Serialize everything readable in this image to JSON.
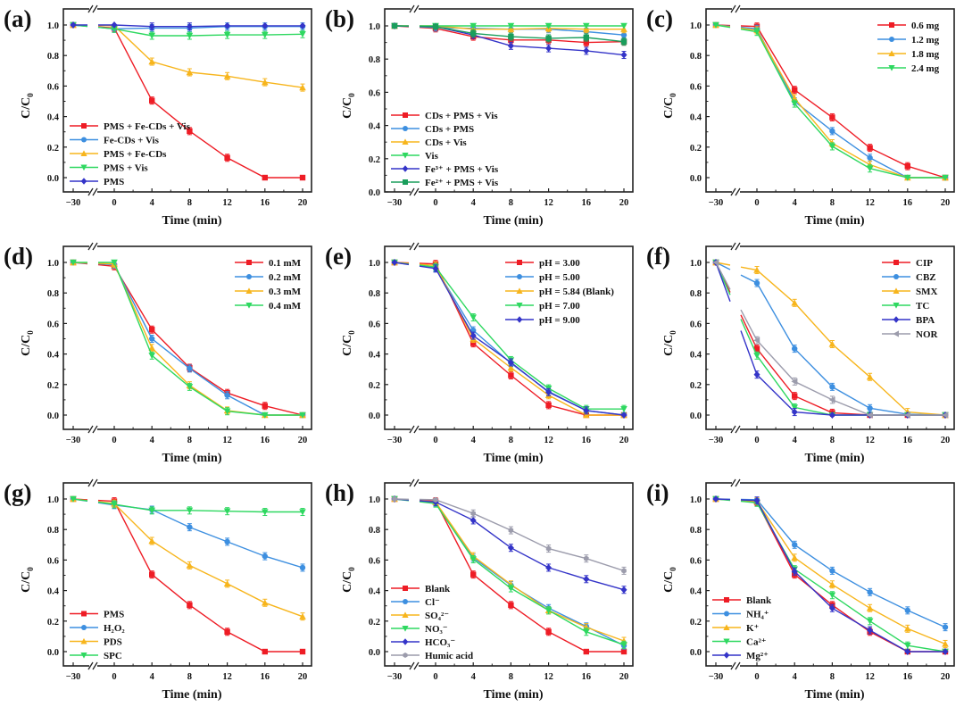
{
  "chart_data": [
    {
      "panel": "(a)",
      "type": "line",
      "title": "",
      "xlabel": "Time (min)",
      "ylabel": "C/C0",
      "x": [
        -30,
        0,
        4,
        8,
        12,
        16,
        20
      ],
      "xticks": [
        "−30",
        "0",
        "4",
        "8",
        "12",
        "16",
        "20"
      ],
      "ylim": [
        -0.1,
        1.1
      ],
      "yticks": [
        "0.0",
        "0.2",
        "0.4",
        "0.6",
        "0.8",
        "1.0"
      ],
      "legend": "bottom-left",
      "series": [
        {
          "name": "PMS + Fe-CDs + Vis",
          "color": "#ee1c25",
          "marker": "square",
          "values": [
            1.0,
            0.98,
            0.505,
            0.305,
            0.13,
            0.0,
            0.0
          ]
        },
        {
          "name": "Fe-CDs + Vis",
          "color": "#3d8fe0",
          "marker": "circle",
          "values": [
            1.0,
            0.975,
            0.98,
            0.98,
            0.99,
            0.99,
            0.99
          ]
        },
        {
          "name": "PMS + Fe-CDs",
          "color": "#f7b51c",
          "marker": "triangle",
          "values": [
            1.0,
            0.995,
            0.76,
            0.69,
            0.665,
            0.625,
            0.59
          ]
        },
        {
          "name": "PMS + Vis",
          "color": "#2ed860",
          "marker": "triangle-down",
          "values": [
            1.0,
            0.975,
            0.93,
            0.93,
            0.935,
            0.935,
            0.94
          ]
        },
        {
          "name": "PMS",
          "color": "#3434c8",
          "marker": "diamond",
          "values": [
            1.0,
            1.0,
            0.99,
            0.99,
            0.995,
            0.995,
            0.995
          ]
        }
      ]
    },
    {
      "panel": "(b)",
      "type": "line",
      "xlabel": "Time (min)",
      "ylabel": "C/C0",
      "x": [
        -30,
        0,
        4,
        8,
        12,
        16,
        20
      ],
      "xticks": [
        "−30",
        "0",
        "4",
        "8",
        "12",
        "16",
        "20"
      ],
      "ylim": [
        0.0,
        1.1
      ],
      "yticks": [
        "0.0",
        "0.2",
        "0.4",
        "0.6",
        "0.8",
        "1.0"
      ],
      "legend": "bottom-left",
      "series": [
        {
          "name": "CDs + PMS + Vis",
          "color": "#ee1c25",
          "marker": "square",
          "values": [
            1.0,
            0.985,
            0.935,
            0.915,
            0.915,
            0.9,
            0.905
          ]
        },
        {
          "name": "CDs + PMS",
          "color": "#3d8fe0",
          "marker": "circle",
          "values": [
            1.0,
            0.99,
            0.985,
            0.98,
            0.98,
            0.965,
            0.945
          ]
        },
        {
          "name": "CDs + Vis",
          "color": "#f7b51c",
          "marker": "triangle",
          "values": [
            1.0,
            1.0,
            0.98,
            0.98,
            0.985,
            0.98,
            0.98
          ]
        },
        {
          "name": "Vis",
          "color": "#2ed860",
          "marker": "triangle-down",
          "values": [
            1.0,
            1.0,
            1.0,
            1.0,
            1.0,
            1.0,
            1.0
          ]
        },
        {
          "name": "Fe³⁺ + PMS + Vis",
          "color": "#3434c8",
          "marker": "diamond",
          "values": [
            1.0,
            0.995,
            0.945,
            0.88,
            0.865,
            0.85,
            0.825
          ]
        },
        {
          "name": "Fe²⁺ + PMS + Vis",
          "color": "#1a9e5c",
          "marker": "square",
          "values": [
            1.0,
            0.995,
            0.955,
            0.935,
            0.925,
            0.93,
            0.905
          ]
        }
      ]
    },
    {
      "panel": "(c)",
      "type": "line",
      "xlabel": "Time (min)",
      "ylabel": "C/C0",
      "x": [
        -30,
        0,
        4,
        8,
        12,
        16,
        20
      ],
      "xticks": [
        "−30",
        "0",
        "4",
        "8",
        "12",
        "16",
        "20"
      ],
      "ylim": [
        -0.1,
        1.1
      ],
      "yticks": [
        "0.0",
        "0.2",
        "0.4",
        "0.6",
        "0.8",
        "1.0"
      ],
      "legend": "top-right",
      "series": [
        {
          "name": "0.6 mg",
          "color": "#ee1c25",
          "marker": "square",
          "values": [
            1.0,
            0.99,
            0.575,
            0.395,
            0.195,
            0.075,
            0.0
          ]
        },
        {
          "name": "1.2 mg",
          "color": "#3d8fe0",
          "marker": "circle",
          "values": [
            1.0,
            0.975,
            0.5,
            0.305,
            0.13,
            0.0,
            0.0
          ]
        },
        {
          "name": "1.8 mg",
          "color": "#f7b51c",
          "marker": "triangle",
          "values": [
            1.0,
            0.965,
            0.52,
            0.225,
            0.085,
            0.0,
            0.0
          ]
        },
        {
          "name": "2.4 mg",
          "color": "#2ed860",
          "marker": "triangle-down",
          "values": [
            1.0,
            0.955,
            0.485,
            0.205,
            0.06,
            0.0,
            0.0
          ]
        }
      ]
    },
    {
      "panel": "(d)",
      "type": "line",
      "xlabel": "Time (min)",
      "ylabel": "C/C0",
      "x": [
        -30,
        0,
        4,
        8,
        12,
        16,
        20
      ],
      "xticks": [
        "−30",
        "0",
        "4",
        "8",
        "12",
        "16",
        "20"
      ],
      "ylim": [
        -0.1,
        1.1
      ],
      "yticks": [
        "0.0",
        "0.2",
        "0.4",
        "0.6",
        "0.8",
        "1.0"
      ],
      "legend": "top-right",
      "series": [
        {
          "name": "0.1 mM",
          "color": "#ee1c25",
          "marker": "square",
          "values": [
            1.0,
            0.975,
            0.56,
            0.31,
            0.145,
            0.06,
            0.0
          ]
        },
        {
          "name": "0.2 mM",
          "color": "#3d8fe0",
          "marker": "circle",
          "values": [
            1.0,
            0.985,
            0.5,
            0.305,
            0.13,
            0.0,
            0.0
          ]
        },
        {
          "name": "0.3 mM",
          "color": "#f7b51c",
          "marker": "triangle",
          "values": [
            1.0,
            0.99,
            0.44,
            0.195,
            0.03,
            0.0,
            0.0
          ]
        },
        {
          "name": "0.4 mM",
          "color": "#2ed860",
          "marker": "triangle-down",
          "values": [
            1.0,
            1.0,
            0.39,
            0.185,
            0.025,
            0.0,
            0.0
          ]
        }
      ]
    },
    {
      "panel": "(e)",
      "type": "line",
      "xlabel": "Time (min)",
      "ylabel": "C/C0",
      "x": [
        -30,
        0,
        4,
        8,
        12,
        16,
        20
      ],
      "xticks": [
        "−30",
        "0",
        "4",
        "8",
        "12",
        "16",
        "20"
      ],
      "ylim": [
        -0.1,
        1.1
      ],
      "yticks": [
        "0.0",
        "0.2",
        "0.4",
        "0.6",
        "0.8",
        "1.0"
      ],
      "legend": "top-right",
      "series": [
        {
          "name": "pH = 3.00",
          "color": "#ee1c25",
          "marker": "square",
          "values": [
            1.0,
            0.99,
            0.47,
            0.26,
            0.065,
            0.0,
            0.0
          ]
        },
        {
          "name": "pH = 5.00",
          "color": "#3d8fe0",
          "marker": "circle",
          "values": [
            1.0,
            0.965,
            0.555,
            0.34,
            0.155,
            0.03,
            0.0
          ]
        },
        {
          "name": "pH = 5.84 (Blank)",
          "color": "#f7b51c",
          "marker": "triangle",
          "values": [
            1.0,
            0.98,
            0.5,
            0.31,
            0.13,
            0.0,
            0.0
          ]
        },
        {
          "name": "pH = 7.00",
          "color": "#2ed860",
          "marker": "triangle-down",
          "values": [
            1.0,
            0.97,
            0.64,
            0.36,
            0.175,
            0.04,
            0.04
          ]
        },
        {
          "name": "pH = 9.00",
          "color": "#3434c8",
          "marker": "diamond",
          "values": [
            1.0,
            0.96,
            0.52,
            0.345,
            0.15,
            0.03,
            0.0
          ]
        }
      ]
    },
    {
      "panel": "(f)",
      "type": "line",
      "xlabel": "Time (min)",
      "ylabel": "C/C0",
      "x": [
        -30,
        0,
        4,
        8,
        12,
        16,
        20
      ],
      "xticks": [
        "−30",
        "0",
        "4",
        "8",
        "12",
        "16",
        "20"
      ],
      "ylim": [
        -0.1,
        1.1
      ],
      "yticks": [
        "0.0",
        "0.2",
        "0.4",
        "0.6",
        "0.8",
        "1.0"
      ],
      "legend": "top-right",
      "series": [
        {
          "name": "CIP",
          "color": "#ee1c25",
          "marker": "square",
          "values": [
            1.0,
            0.435,
            0.125,
            0.015,
            0.0,
            0.0,
            0.0
          ]
        },
        {
          "name": "CBZ",
          "color": "#3d8fe0",
          "marker": "circle",
          "values": [
            1.0,
            0.865,
            0.435,
            0.185,
            0.045,
            0.005,
            0.0
          ]
        },
        {
          "name": "SMX",
          "color": "#f7b51c",
          "marker": "triangle",
          "values": [
            1.0,
            0.95,
            0.735,
            0.465,
            0.25,
            0.02,
            0.0
          ]
        },
        {
          "name": "TC",
          "color": "#2ed860",
          "marker": "triangle-down",
          "values": [
            1.0,
            0.39,
            0.05,
            0.0,
            0.0,
            0.0,
            0.0
          ]
        },
        {
          "name": "BPA",
          "color": "#3434c8",
          "marker": "diamond",
          "values": [
            1.0,
            0.265,
            0.02,
            0.0,
            0.0,
            0.0,
            0.0
          ]
        },
        {
          "name": "NOR",
          "color": "#9c9cac",
          "marker": "triangle-left",
          "values": [
            1.0,
            0.49,
            0.22,
            0.1,
            0.0,
            0.0,
            0.0
          ]
        }
      ]
    },
    {
      "panel": "(g)",
      "type": "line",
      "xlabel": "Time (min)",
      "ylabel": "C/C0",
      "x": [
        -30,
        0,
        4,
        8,
        12,
        16,
        20
      ],
      "xticks": [
        "−30",
        "0",
        "4",
        "8",
        "12",
        "16",
        "20"
      ],
      "ylim": [
        -0.1,
        1.1
      ],
      "yticks": [
        "0.0",
        "0.2",
        "0.4",
        "0.6",
        "0.8",
        "1.0"
      ],
      "legend": "bottom-left",
      "series": [
        {
          "name": "PMS",
          "color": "#ee1c25",
          "marker": "square",
          "values": [
            1.0,
            0.985,
            0.505,
            0.305,
            0.13,
            0.0,
            0.0
          ]
        },
        {
          "name": "H₂O₂",
          "color": "#3d8fe0",
          "marker": "circle",
          "values": [
            1.0,
            0.96,
            0.93,
            0.815,
            0.72,
            0.625,
            0.55
          ]
        },
        {
          "name": "PDS",
          "color": "#f7b51c",
          "marker": "triangle",
          "values": [
            1.0,
            0.97,
            0.725,
            0.565,
            0.445,
            0.32,
            0.23
          ]
        },
        {
          "name": "SPC",
          "color": "#2ed860",
          "marker": "triangle-down",
          "values": [
            1.0,
            0.965,
            0.925,
            0.925,
            0.92,
            0.915,
            0.915
          ]
        }
      ]
    },
    {
      "panel": "(h)",
      "type": "line",
      "xlabel": "Time (min)",
      "ylabel": "C/C0",
      "x": [
        -30,
        0,
        4,
        8,
        12,
        16,
        20
      ],
      "xticks": [
        "−30",
        "0",
        "4",
        "8",
        "12",
        "16",
        "20"
      ],
      "ylim": [
        -0.1,
        1.1
      ],
      "yticks": [
        "0.0",
        "0.2",
        "0.4",
        "0.6",
        "0.8",
        "1.0"
      ],
      "legend": "bottom-left",
      "series": [
        {
          "name": "Blank",
          "color": "#ee1c25",
          "marker": "square",
          "values": [
            1.0,
            0.985,
            0.505,
            0.305,
            0.13,
            0.0,
            0.0
          ]
        },
        {
          "name": "Cl⁻",
          "color": "#3d8fe0",
          "marker": "circle",
          "values": [
            1.0,
            0.975,
            0.615,
            0.435,
            0.285,
            0.165,
            0.04
          ]
        },
        {
          "name": "SO₄²⁻",
          "color": "#f7b51c",
          "marker": "triangle",
          "values": [
            1.0,
            0.98,
            0.625,
            0.44,
            0.27,
            0.16,
            0.07
          ]
        },
        {
          "name": "NO₃⁻",
          "color": "#2ed860",
          "marker": "triangle-down",
          "values": [
            1.0,
            0.97,
            0.605,
            0.415,
            0.27,
            0.13,
            0.045
          ]
        },
        {
          "name": "HCO₃⁻",
          "color": "#3434c8",
          "marker": "diamond",
          "values": [
            1.0,
            0.98,
            0.86,
            0.68,
            0.55,
            0.475,
            0.405
          ]
        },
        {
          "name": "Humic acid",
          "color": "#9c9cac",
          "marker": "hexagon",
          "values": [
            1.0,
            0.995,
            0.905,
            0.795,
            0.675,
            0.61,
            0.53
          ]
        }
      ]
    },
    {
      "panel": "(i)",
      "type": "line",
      "xlabel": "Time (min)",
      "ylabel": "C/C0",
      "x": [
        -30,
        0,
        4,
        8,
        12,
        16,
        20
      ],
      "xticks": [
        "−30",
        "0",
        "4",
        "8",
        "12",
        "16",
        "20"
      ],
      "ylim": [
        -0.1,
        1.1
      ],
      "yticks": [
        "0.0",
        "0.2",
        "0.4",
        "0.6",
        "0.8",
        "1.0"
      ],
      "legend": "bottom-left",
      "series": [
        {
          "name": "Blank",
          "color": "#ee1c25",
          "marker": "square",
          "values": [
            1.0,
            0.98,
            0.505,
            0.305,
            0.13,
            0.0,
            0.0
          ]
        },
        {
          "name": "NH₄⁺",
          "color": "#3d8fe0",
          "marker": "circle",
          "values": [
            1.0,
            0.995,
            0.7,
            0.53,
            0.39,
            0.27,
            0.16
          ]
        },
        {
          "name": "K⁺",
          "color": "#f7b51c",
          "marker": "triangle",
          "values": [
            1.0,
            0.985,
            0.615,
            0.44,
            0.285,
            0.15,
            0.05
          ]
        },
        {
          "name": "Ca²⁺",
          "color": "#2ed860",
          "marker": "triangle-down",
          "values": [
            1.0,
            0.975,
            0.54,
            0.37,
            0.2,
            0.04,
            0.0
          ]
        },
        {
          "name": "Mg²⁺",
          "color": "#3434c8",
          "marker": "diamond",
          "values": [
            1.0,
            0.99,
            0.525,
            0.285,
            0.14,
            0.0,
            0.0
          ]
        }
      ]
    }
  ]
}
